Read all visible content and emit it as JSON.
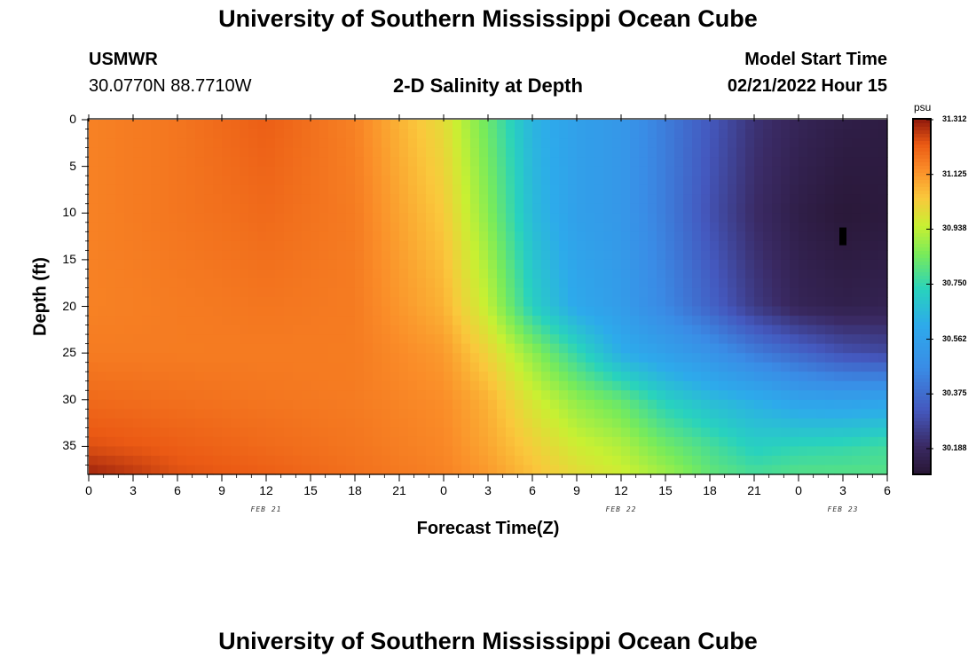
{
  "page": {
    "title_top": "University of Southern Mississippi Ocean Cube",
    "title_bottom": "University of Southern Mississippi Ocean Cube",
    "station": "USMWR",
    "coords": "30.0770N  88.7710W",
    "plot_title": "2-D Salinity at Depth",
    "model_start_label": "Model Start Time",
    "model_start_value": "02/21/2022 Hour 15"
  },
  "chart_data": {
    "type": "heatmap",
    "xlabel": "Forecast Time(Z)",
    "ylabel": "Depth (ft)",
    "x_ticks": [
      "0",
      "3",
      "6",
      "9",
      "12",
      "15",
      "18",
      "21",
      "0",
      "3",
      "6",
      "9",
      "12",
      "15",
      "18",
      "21",
      "0",
      "3",
      "6"
    ],
    "x_range_hours": [
      0,
      54
    ],
    "date_labels": [
      {
        "label": "FEB 21",
        "hour": 12
      },
      {
        "label": "FEB 22",
        "hour": 36
      },
      {
        "label": "FEB 23",
        "hour": 51
      }
    ],
    "y_ticks": [
      "0",
      "5",
      "10",
      "15",
      "20",
      "25",
      "30",
      "35"
    ],
    "ylim_ft": [
      0,
      38
    ],
    "y_inverted": true,
    "colorbar": {
      "unit": "psu",
      "min": 30.1,
      "max": 31.312,
      "ticks": [
        "31.312",
        "31.125",
        "30.938",
        "30.750",
        "30.562",
        "30.375",
        "30.188"
      ]
    },
    "salinity_psu_by_depth": [
      {
        "depth_ft": 0,
        "hours": [
          0,
          6,
          12,
          18,
          24,
          27,
          30,
          33,
          36,
          39,
          42,
          45,
          48,
          51,
          54
        ],
        "psu": [
          31.16,
          31.18,
          31.22,
          31.16,
          31.0,
          30.83,
          30.64,
          30.56,
          30.52,
          30.42,
          30.32,
          30.22,
          30.17,
          30.14,
          30.13
        ]
      },
      {
        "depth_ft": 10,
        "hours": [
          0,
          6,
          12,
          18,
          24,
          27,
          30,
          33,
          36,
          39,
          42,
          45,
          48,
          51,
          54
        ],
        "psu": [
          31.16,
          31.18,
          31.2,
          31.17,
          31.04,
          30.87,
          30.66,
          30.56,
          30.52,
          30.42,
          30.3,
          30.2,
          30.14,
          30.11,
          30.12
        ]
      },
      {
        "depth_ft": 20,
        "hours": [
          0,
          6,
          12,
          18,
          24,
          27,
          30,
          33,
          36,
          39,
          42,
          45,
          48,
          51,
          54
        ],
        "psu": [
          31.16,
          31.17,
          31.18,
          31.17,
          31.08,
          30.94,
          30.72,
          30.6,
          30.54,
          30.45,
          30.35,
          30.24,
          30.17,
          30.15,
          30.16
        ]
      },
      {
        "depth_ft": 25,
        "hours": [
          0,
          6,
          12,
          18,
          24,
          27,
          30,
          33,
          36,
          39,
          42,
          45,
          48,
          51,
          54
        ],
        "psu": [
          31.17,
          31.17,
          31.17,
          31.17,
          31.12,
          31.02,
          30.88,
          30.75,
          30.62,
          30.56,
          30.5,
          30.42,
          30.36,
          30.3,
          30.28
        ]
      },
      {
        "depth_ft": 30,
        "hours": [
          0,
          6,
          12,
          18,
          24,
          27,
          30,
          33,
          36,
          39,
          42,
          45,
          48,
          51,
          54
        ],
        "psu": [
          31.2,
          31.19,
          31.18,
          31.17,
          31.14,
          31.08,
          30.97,
          30.88,
          30.82,
          30.72,
          30.66,
          30.62,
          30.57,
          30.56,
          30.57
        ]
      },
      {
        "depth_ft": 35,
        "hours": [
          0,
          6,
          12,
          18,
          24,
          27,
          30,
          33,
          36,
          39,
          42,
          45,
          48,
          51,
          54
        ],
        "psu": [
          31.24,
          31.22,
          31.2,
          31.18,
          31.15,
          31.1,
          31.03,
          30.96,
          30.92,
          30.84,
          30.78,
          30.72,
          30.74,
          30.75,
          30.77
        ]
      },
      {
        "depth_ft": 38,
        "hours": [
          0,
          6,
          12,
          18,
          24,
          27,
          30,
          33,
          36,
          39,
          42,
          45,
          48,
          51,
          54
        ],
        "psu": [
          31.3,
          31.24,
          31.22,
          31.19,
          31.16,
          31.12,
          31.06,
          31.0,
          30.96,
          30.9,
          30.82,
          30.78,
          30.8,
          30.8,
          30.8
        ]
      }
    ],
    "missing_marker": {
      "hour": 51,
      "depth_ft": 12.5
    }
  }
}
